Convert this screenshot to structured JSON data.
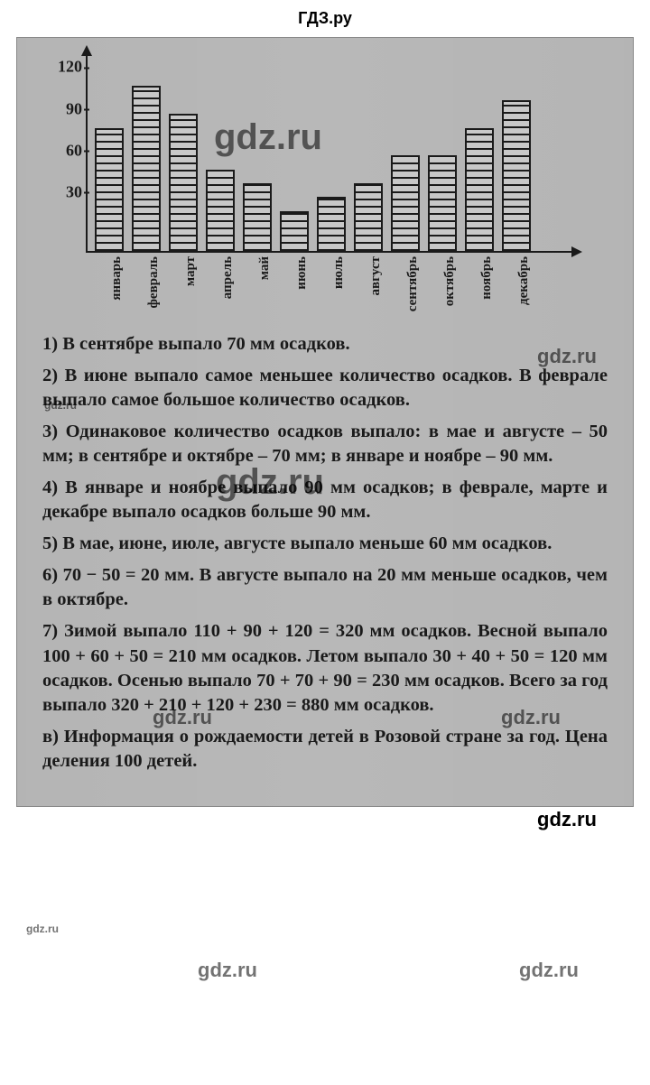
{
  "header": "ГДЗ.ру",
  "chart": {
    "type": "bar",
    "ylim": [
      0,
      130
    ],
    "yticks": [
      30,
      60,
      90,
      120
    ],
    "bar_border": "#1a1a1a",
    "bar_fill": "#c8c8c8",
    "axis_color": "#1a1a1a",
    "background": "#b8b8b8",
    "months": [
      {
        "label": "январь",
        "value": 90
      },
      {
        "label": "февраль",
        "value": 120
      },
      {
        "label": "март",
        "value": 100
      },
      {
        "label": "апрель",
        "value": 60
      },
      {
        "label": "май",
        "value": 50
      },
      {
        "label": "июнь",
        "value": 30
      },
      {
        "label": "июль",
        "value": 40
      },
      {
        "label": "август",
        "value": 50
      },
      {
        "label": "сентябрь",
        "value": 70
      },
      {
        "label": "октябрь",
        "value": 70
      },
      {
        "label": "ноябрь",
        "value": 90
      },
      {
        "label": "декабрь",
        "value": 110
      }
    ]
  },
  "answers": {
    "a1": "1) В сентябре выпало 70 мм осадков.",
    "a2": "2) В июне выпало самое меньшее количество осадков. В феврале выпало самое большое количество осадков.",
    "a3": "3) Одинаковое количество осадков выпало: в мае и августе – 50 мм; в сентябре и октябре – 70 мм; в январе и ноябре – 90 мм.",
    "a4": "4) В январе и ноябре выпало 90 мм осадков; в феврале, марте и декабре выпало осадков больше 90 мм.",
    "a5": "5) В мае, июне, июле, августе выпало меньше 60 мм осадков.",
    "a6": "6) 70 − 50 = 20 мм. В августе выпало на 20 мм меньше осадков, чем в октябре.",
    "a7": "7) Зимой выпало 110 + 90 + 120 = 320 мм осадков. Весной выпало 100 + 60 + 50 = 210 мм осадков. Летом выпало 30 + 40 + 50 = 120 мм осадков. Осенью выпало 70 + 70 + 90 = 230 мм осадков. Всего за год выпало 320 + 210 + 120 + 230 = 880 мм осадков.",
    "a8": "в) Информация о рождаемости детей в Розовой стране за год. Цена деления 100 детей."
  },
  "watermarks": {
    "big": "gdz.ru",
    "mid": "gdz.ru",
    "sm": "gdz.ru"
  }
}
